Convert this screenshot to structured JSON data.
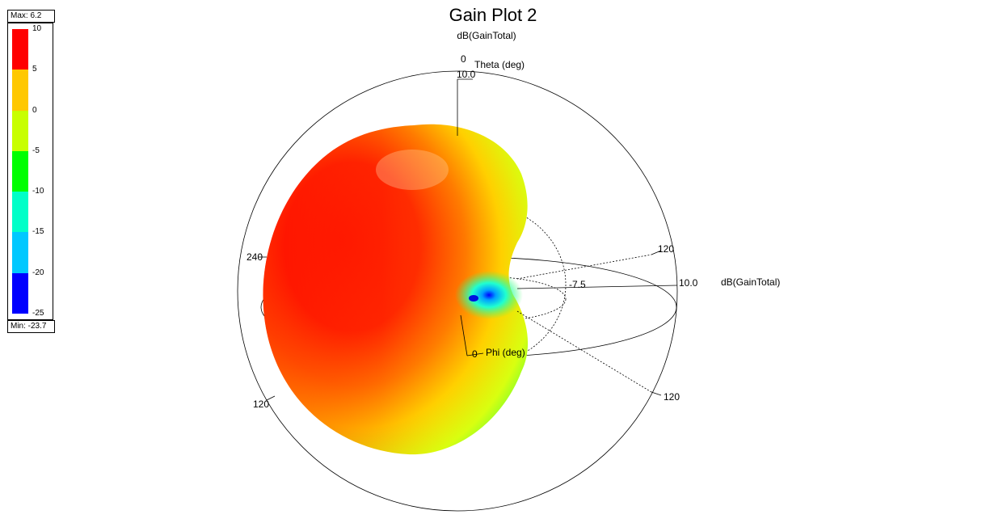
{
  "chart_data": {
    "type": "3d-radiation-pattern",
    "title": "Gain Plot 2",
    "subtitle": "dB(GainTotal)",
    "quantity_label": "dB(GainTotal)",
    "theta_axis_label": "Theta (deg)",
    "phi_axis_label": "Phi (deg)",
    "theta_tick_label": "0",
    "phi_tick_label": "0",
    "radial_labels": [
      "10.0",
      "10.0",
      "-7.5"
    ],
    "angle_labels": [
      "240",
      "120",
      "120",
      "120"
    ],
    "legend": {
      "max_label": "Max: 6.2",
      "min_label": "Min: -23.7",
      "max": 6.2,
      "min": -23.7,
      "ticks": [
        "10",
        "5",
        "0",
        "-5",
        "-10",
        "-15",
        "-20",
        "-25"
      ],
      "bands": [
        {
          "from": 10,
          "to": 5,
          "color": "#ff0000"
        },
        {
          "from": 5,
          "to": 0,
          "color": "#ffc800"
        },
        {
          "from": 0,
          "to": -5,
          "color": "#c8ff00"
        },
        {
          "from": -5,
          "to": -10,
          "color": "#00ff00"
        },
        {
          "from": -10,
          "to": -15,
          "color": "#00ffc8"
        },
        {
          "from": -15,
          "to": -20,
          "color": "#00c8ff"
        },
        {
          "from": -20,
          "to": -25,
          "color": "#0000ff"
        }
      ]
    }
  }
}
